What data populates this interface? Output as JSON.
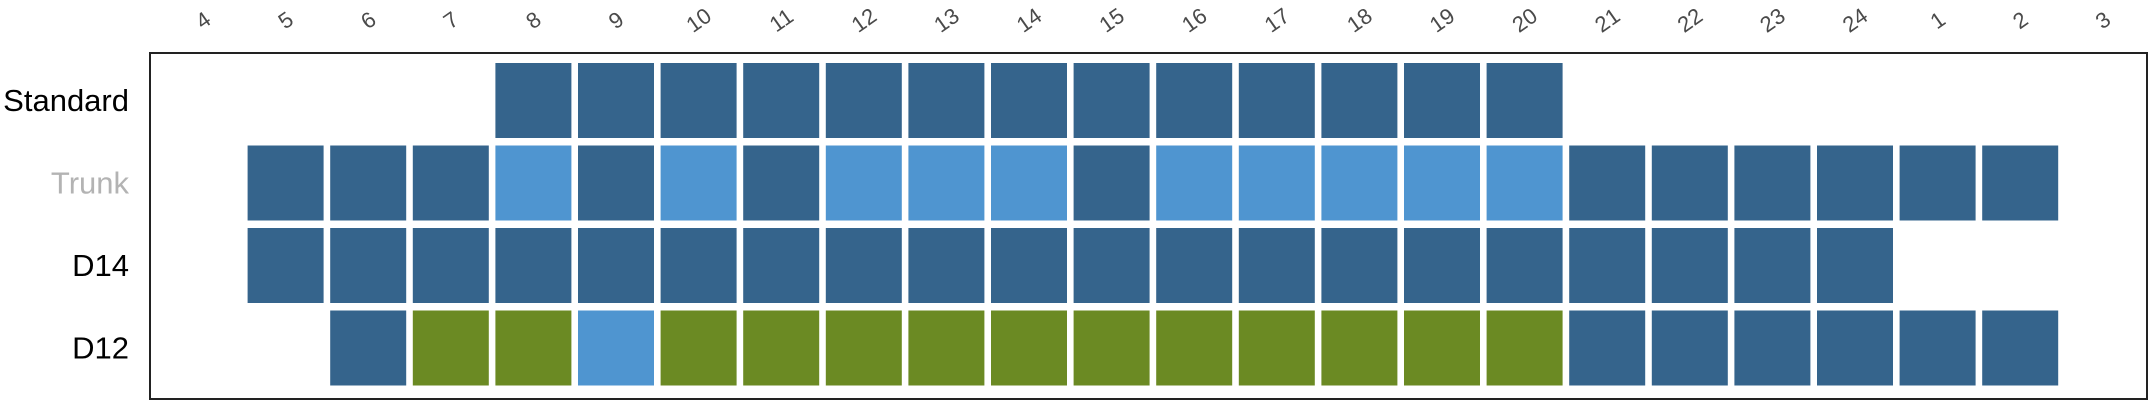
{
  "chart_data": {
    "type": "heatmap",
    "hours": [
      "4",
      "5",
      "6",
      "7",
      "8",
      "9",
      "10",
      "11",
      "12",
      "13",
      "14",
      "15",
      "16",
      "17",
      "18",
      "19",
      "20",
      "21",
      "22",
      "23",
      "24",
      "1",
      "2",
      "3"
    ],
    "rows": [
      {
        "label": "Standard",
        "label_color": "#000000",
        "cells": [
          null,
          null,
          null,
          null,
          "D",
          "D",
          "D",
          "D",
          "D",
          "D",
          "D",
          "D",
          "D",
          "D",
          "D",
          "D",
          "D",
          null,
          null,
          null,
          null,
          null,
          null,
          null
        ]
      },
      {
        "label": "Trunk",
        "label_color": "#b3b3b3",
        "cells": [
          null,
          "D",
          "D",
          "D",
          "L",
          "D",
          "L",
          "D",
          "L",
          "L",
          "L",
          "D",
          "L",
          "L",
          "L",
          "L",
          "L",
          "D",
          "D",
          "D",
          "D",
          "D",
          "D",
          null
        ]
      },
      {
        "label": "D14",
        "label_color": "#000000",
        "cells": [
          null,
          "D",
          "D",
          "D",
          "D",
          "D",
          "D",
          "D",
          "D",
          "D",
          "D",
          "D",
          "D",
          "D",
          "D",
          "D",
          "D",
          "D",
          "D",
          "D",
          "D",
          null,
          null,
          null
        ]
      },
      {
        "label": "D12",
        "label_color": "#000000",
        "cells": [
          null,
          null,
          "D",
          "G",
          "G",
          "L",
          "G",
          "G",
          "G",
          "G",
          "G",
          "G",
          "G",
          "G",
          "G",
          "G",
          "G",
          "D",
          "D",
          "D",
          "D",
          "D",
          "D",
          null
        ]
      }
    ],
    "colors": {
      "D": "#35648c",
      "L": "#4f95d0",
      "G": "#6b8a23"
    },
    "grid": false,
    "legend": "none"
  }
}
